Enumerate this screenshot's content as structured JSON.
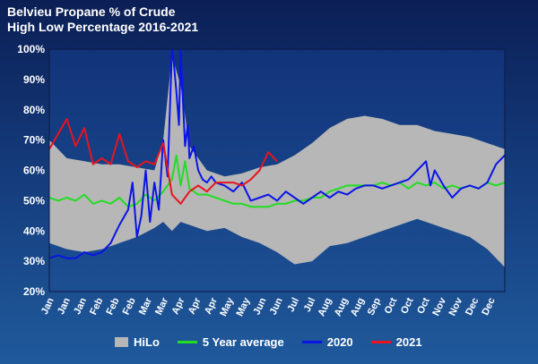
{
  "chart_data": {
    "type": "line",
    "title": "Belvieu Propane % of Crude",
    "subtitle": "High Low Percentage 2016-2021",
    "y_tick_labels": [
      "100%",
      "90%",
      "80%",
      "70%",
      "60%",
      "50%",
      "40%",
      "30%",
      "20%"
    ],
    "ylim": [
      20,
      100
    ],
    "x_tick_labels": [
      "Jan",
      "Jan",
      "Jan",
      "Feb",
      "Feb",
      "Feb",
      "Mar",
      "Mar",
      "Apr",
      "Apr",
      "Apr",
      "May",
      "May",
      "Jun",
      "Jun",
      "Jul",
      "Jul",
      "Aug",
      "Aug",
      "Aug",
      "Sep",
      "Oct",
      "Oct",
      "Oct",
      "Nov",
      "Nov",
      "Dec",
      "Dec"
    ],
    "x_week_range": [
      1,
      53
    ],
    "grid": false,
    "legend_position": "bottom",
    "band": {
      "name": "HiLo",
      "color": "#b7b7b7",
      "weeks": [
        1,
        3,
        5,
        7,
        9,
        11,
        13,
        14,
        15,
        16,
        17,
        19,
        21,
        23,
        25,
        27,
        29,
        31,
        33,
        35,
        37,
        39,
        41,
        43,
        45,
        47,
        49,
        51,
        53
      ],
      "high": [
        70,
        64,
        63,
        62,
        62,
        61,
        60,
        70,
        98,
        88,
        68,
        60,
        58,
        59,
        61,
        62,
        65,
        69,
        74,
        77,
        78,
        77,
        75,
        75,
        73,
        72,
        71,
        69,
        67
      ],
      "low": [
        36,
        34,
        33,
        34,
        36,
        38,
        41,
        43,
        40,
        43,
        42,
        40,
        41,
        38,
        36,
        33,
        29,
        30,
        35,
        36,
        38,
        40,
        42,
        44,
        42,
        40,
        38,
        34,
        28
      ]
    },
    "series": [
      {
        "name": "5 Year average",
        "color": "#22dd22",
        "weeks": [
          1,
          2,
          3,
          4,
          5,
          6,
          7,
          8,
          9,
          10,
          11,
          12,
          13,
          14,
          15,
          15.5,
          16,
          16.5,
          17,
          18,
          19,
          20,
          21,
          22,
          23,
          24,
          25,
          26,
          27,
          28,
          29,
          30,
          31,
          32,
          33,
          34,
          35,
          36,
          37,
          38,
          39,
          40,
          41,
          42,
          43,
          44,
          45,
          46,
          47,
          48,
          49,
          50,
          51,
          52,
          53
        ],
        "values": [
          51,
          50,
          51,
          50,
          52,
          49,
          50,
          49,
          51,
          48,
          49,
          52,
          50,
          53,
          57,
          65,
          55,
          63,
          54,
          52,
          52,
          51,
          50,
          49,
          49,
          48,
          48,
          48,
          49,
          49,
          50,
          50,
          51,
          51,
          53,
          54,
          55,
          55,
          55,
          55,
          56,
          55,
          56,
          54,
          56,
          55,
          56,
          54,
          55,
          54,
          55,
          54,
          56,
          55,
          56
        ]
      },
      {
        "name": "2020",
        "color": "#0a14e6",
        "weeks": [
          1,
          2,
          3,
          4,
          5,
          6,
          7,
          8,
          9,
          10,
          10.5,
          11,
          11.5,
          12,
          12.5,
          13,
          13.5,
          14,
          14.5,
          15,
          15.2,
          15.5,
          15.8,
          16,
          16.3,
          16.5,
          16.8,
          17,
          17.5,
          18,
          18.5,
          19,
          19.5,
          20,
          21,
          22,
          23,
          24,
          25,
          26,
          27,
          28,
          29,
          30,
          31,
          32,
          33,
          34,
          35,
          36,
          37,
          38,
          39,
          40,
          41,
          42,
          43,
          44,
          44.5,
          45,
          46,
          47,
          48,
          49,
          50,
          51,
          52,
          53
        ],
        "values": [
          31,
          32,
          31,
          31,
          33,
          32,
          33,
          36,
          42,
          47,
          56,
          38,
          45,
          60,
          43,
          56,
          47,
          70,
          58,
          100,
          96,
          86,
          75,
          100,
          80,
          68,
          75,
          64,
          68,
          60,
          57,
          56,
          58,
          56,
          55,
          53,
          56,
          50,
          51,
          52,
          50,
          53,
          51,
          49,
          51,
          53,
          51,
          53,
          52,
          54,
          55,
          55,
          54,
          55,
          56,
          57,
          60,
          63,
          55,
          60,
          55,
          51,
          54,
          55,
          54,
          56,
          62,
          65
        ]
      },
      {
        "name": "2021",
        "color": "#e8141e",
        "weeks": [
          1,
          2,
          3,
          4,
          5,
          6,
          7,
          8,
          9,
          10,
          11,
          12,
          13,
          14,
          15,
          16,
          17,
          18,
          19,
          20,
          21,
          22,
          23,
          24,
          25,
          26,
          27
        ],
        "values": [
          67,
          72,
          77,
          68,
          74,
          62,
          64,
          62,
          72,
          63,
          61,
          63,
          62,
          69,
          52,
          49,
          53,
          55,
          53,
          56,
          56,
          56,
          55,
          57,
          60,
          66,
          63
        ]
      }
    ]
  }
}
